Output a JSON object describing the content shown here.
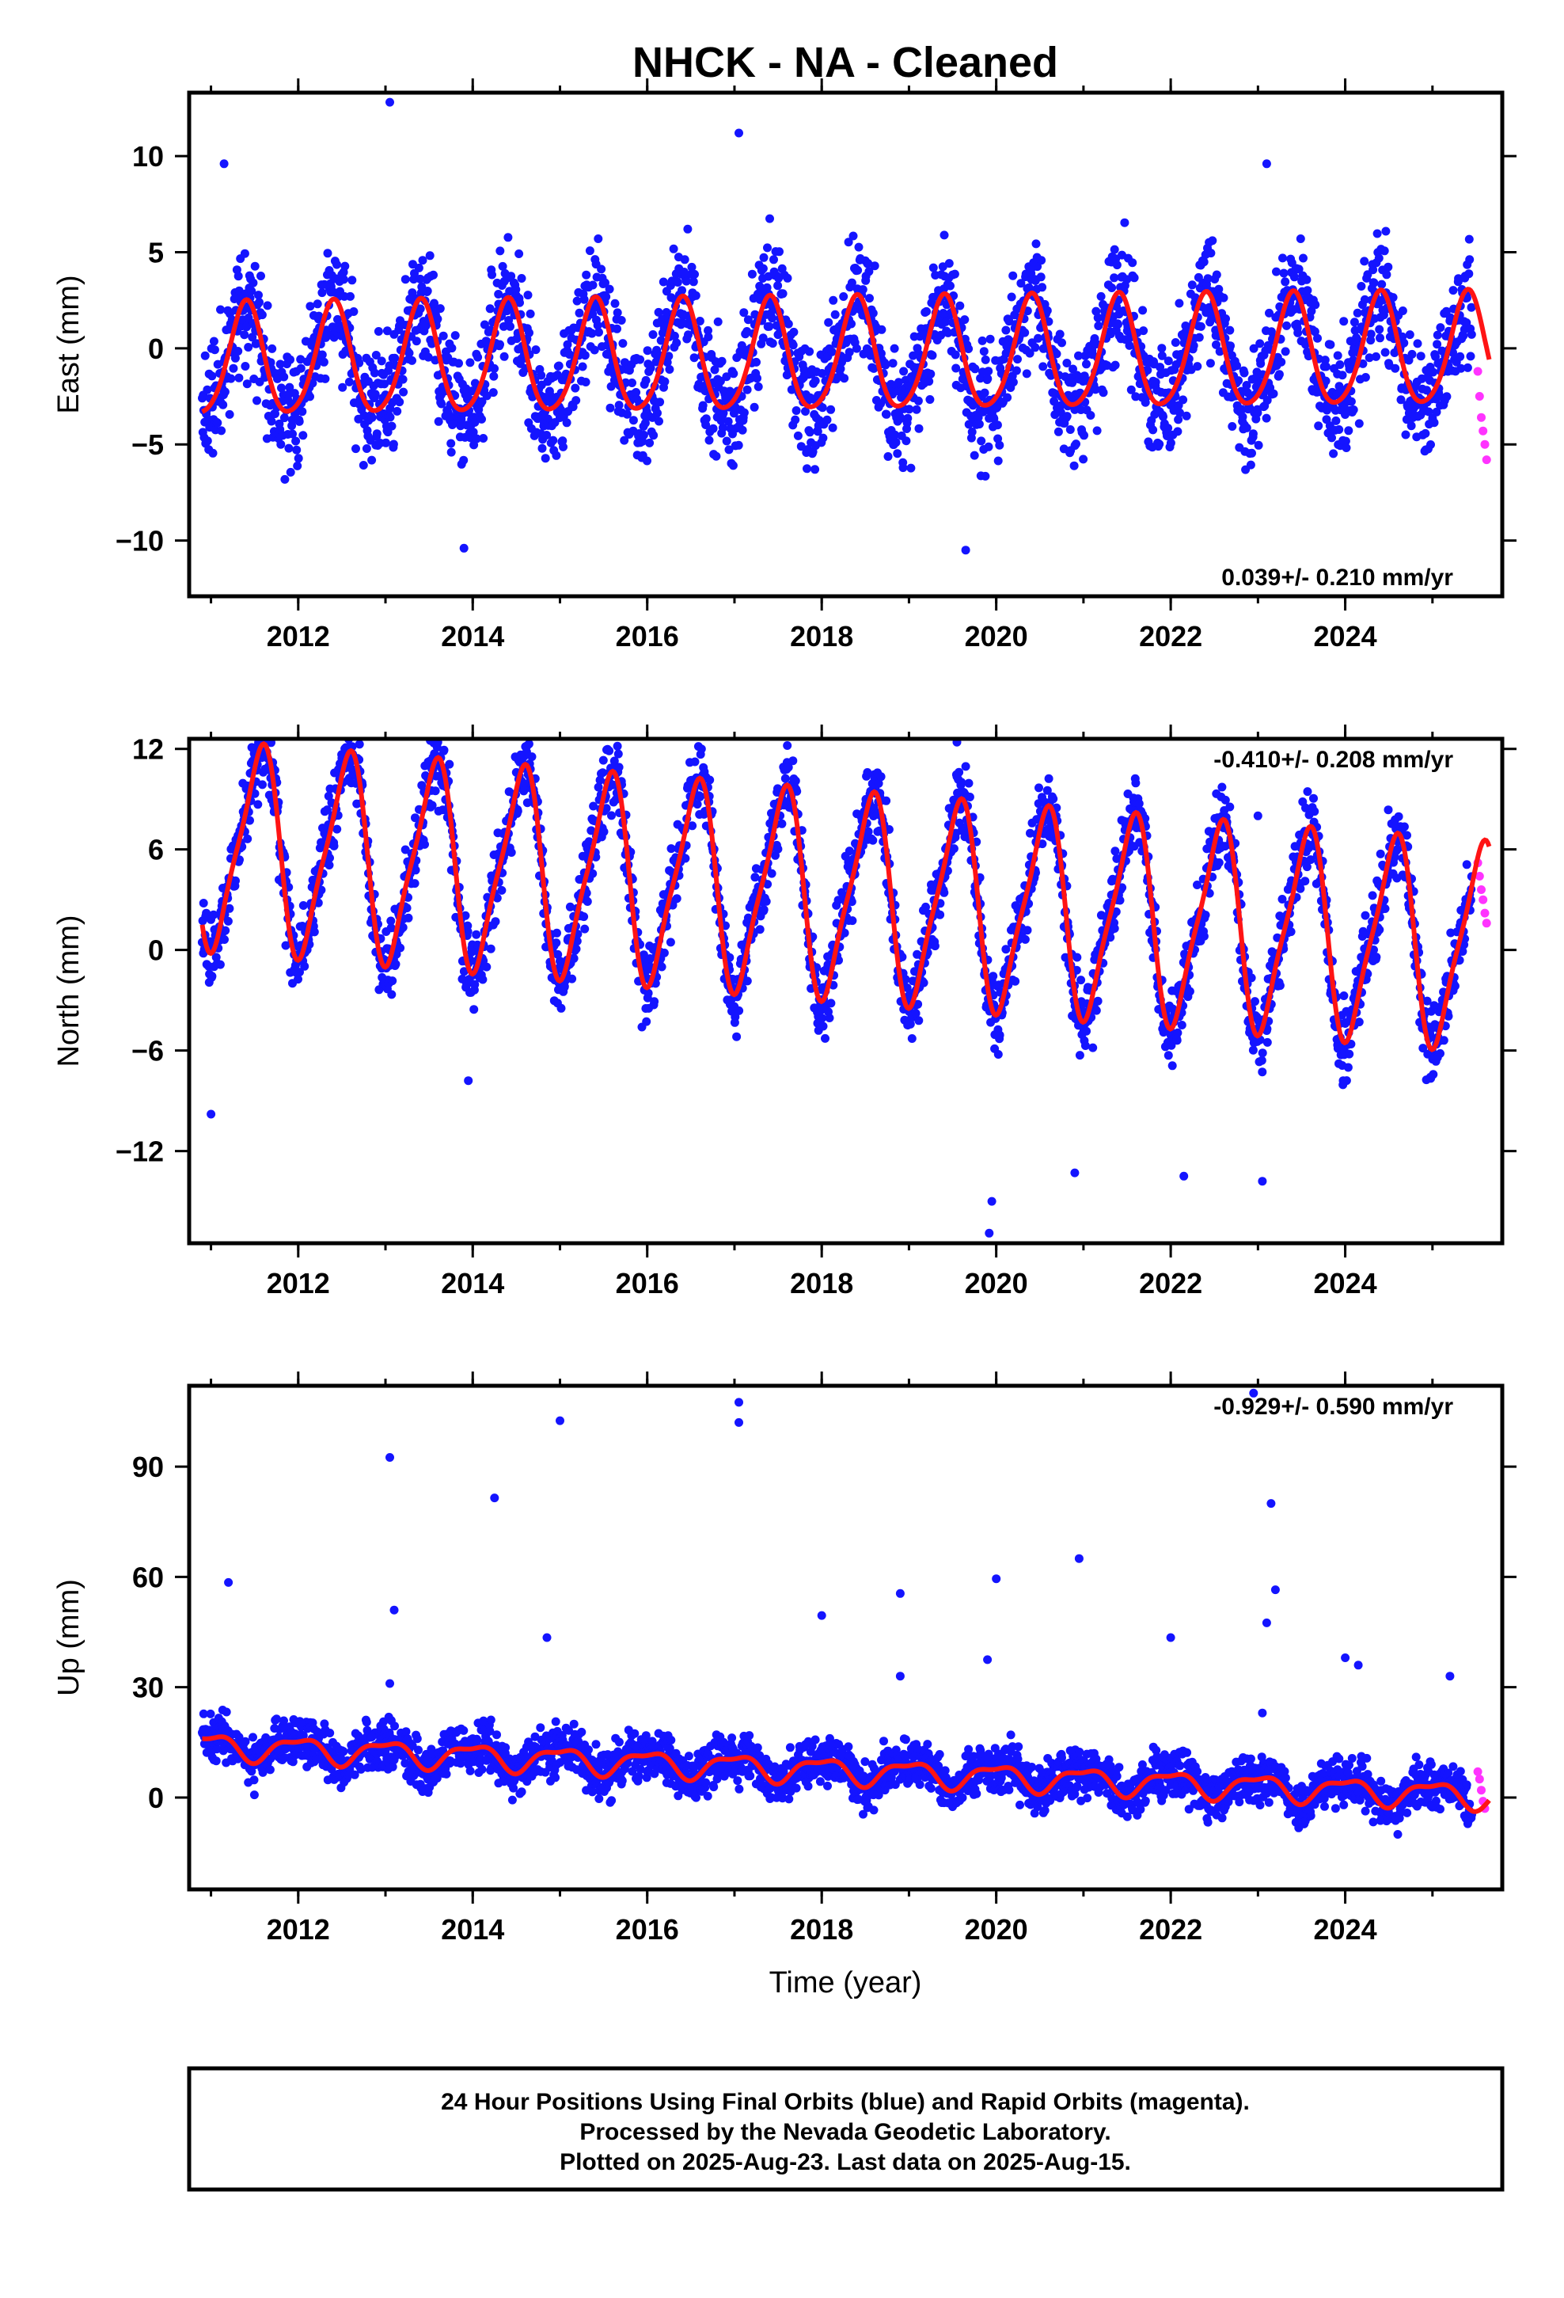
{
  "title": "NHCK  - NA - Cleaned",
  "colors": {
    "final": "#1414ff",
    "rapid": "#ff33ff",
    "model": "#ff1414",
    "axes": "#000000"
  },
  "chart_data": [
    {
      "type": "scatter",
      "ylabel": "East (mm)",
      "rate": "0.039+/- 0.210 mm/yr",
      "rate_position": "bottom-right",
      "xlim": [
        2010.75,
        2025.8
      ],
      "ylim": [
        -12.9,
        13.3
      ],
      "xticks": [
        2012,
        2014,
        2016,
        2018,
        2020,
        2022,
        2024
      ],
      "xtick_labels": [
        "2012",
        "2014",
        "2016",
        "2018",
        "2020",
        "2022",
        "2024"
      ],
      "yticks": [
        -10,
        -5,
        0,
        5,
        10
      ],
      "ytick_labels": [
        "−10",
        "−5",
        "0",
        "5",
        "10"
      ],
      "model": {
        "start": 2010.9,
        "end": 2025.65,
        "offset": -0.5,
        "trend": 0.039,
        "annual_amp": 2.9,
        "annual_phase": 0.15,
        "semi_amp": 0.4,
        "semi_phase": 0.3,
        "amp_growth": 0.0
      },
      "scatter": {
        "start": 2010.9,
        "end": 2025.45,
        "noise": 2.2,
        "count": 2600,
        "seed": 11
      },
      "rapid": {
        "x": [
          2025.52,
          2025.54,
          2025.56,
          2025.58,
          2025.6,
          2025.62
        ],
        "y": [
          -1.2,
          -2.5,
          -3.6,
          -4.3,
          -5.0,
          -5.8
        ]
      },
      "outliers": {
        "x": [
          2011.15,
          2013.05,
          2013.9,
          2017.05,
          2019.65,
          2023.1
        ],
        "y": [
          9.6,
          12.8,
          -10.4,
          11.2,
          -10.5,
          9.6
        ]
      }
    },
    {
      "type": "scatter",
      "ylabel": "North (mm)",
      "rate": "-0.410+/- 0.208 mm/yr",
      "rate_position": "top-right",
      "xlim": [
        2010.75,
        2025.8
      ],
      "ylim": [
        -17.5,
        12.6
      ],
      "xticks": [
        2012,
        2014,
        2016,
        2018,
        2020,
        2022,
        2024
      ],
      "xtick_labels": [
        "2012",
        "2014",
        "2016",
        "2018",
        "2020",
        "2022",
        "2024"
      ],
      "yticks": [
        -12,
        -6,
        0,
        6,
        12
      ],
      "ytick_labels": [
        "−12",
        "−6",
        "0",
        "6",
        "12"
      ],
      "model": {
        "start": 2010.9,
        "end": 2025.65,
        "offset": 3.3,
        "trend": -0.41,
        "annual_amp": 5.9,
        "annual_phase": 0.3,
        "semi_amp": 1.3,
        "semi_phase": 0.05,
        "amp_growth": 0.0
      },
      "scatter": {
        "start": 2010.9,
        "end": 2025.45,
        "noise": 1.6,
        "count": 2600,
        "seed": 23
      },
      "rapid": {
        "x": [
          2025.52,
          2025.54,
          2025.56,
          2025.58,
          2025.6,
          2025.62
        ],
        "y": [
          5.2,
          4.4,
          3.6,
          3.0,
          2.2,
          1.6
        ]
      },
      "outliers": {
        "x": [
          2011.0,
          2013.95,
          2019.55,
          2019.95,
          2019.92,
          2020.9,
          2022.15,
          2023.05,
          2023.0
        ],
        "y": [
          -9.8,
          -7.8,
          12.4,
          -15.0,
          -16.9,
          -13.3,
          -13.5,
          -13.8,
          8.0
        ]
      }
    },
    {
      "type": "scatter",
      "ylabel": "Up (mm)",
      "xlabel": "Time (year)",
      "rate": "-0.929+/- 0.590 mm/yr",
      "rate_position": "top-right",
      "xlim": [
        2010.75,
        2025.8
      ],
      "ylim": [
        -25,
        112
      ],
      "xticks": [
        2012,
        2014,
        2016,
        2018,
        2020,
        2022,
        2024
      ],
      "xtick_labels": [
        "2012",
        "2014",
        "2016",
        "2018",
        "2020",
        "2022",
        "2024"
      ],
      "yticks": [
        0,
        30,
        60,
        90
      ],
      "ytick_labels": [
        "0",
        "30",
        "60",
        "90"
      ],
      "model": {
        "start": 2010.9,
        "end": 2025.65,
        "offset": 7.5,
        "trend": -0.929,
        "annual_amp": 3.2,
        "annual_phase": 0.75,
        "semi_amp": 1.2,
        "semi_phase": 0.1,
        "amp_growth": 0.0
      },
      "scatter": {
        "start": 2010.9,
        "end": 2025.45,
        "noise": 4.6,
        "count": 2600,
        "seed": 37
      },
      "rapid": {
        "x": [
          2025.52,
          2025.54,
          2025.56,
          2025.58,
          2025.6
        ],
        "y": [
          7.0,
          5.0,
          2.0,
          -1.0,
          -3.0
        ]
      },
      "outliers": {
        "x": [
          2011.2,
          2013.05,
          2013.1,
          2013.05,
          2014.25,
          2014.85,
          2015.0,
          2017.05,
          2017.05,
          2018.0,
          2018.9,
          2018.9,
          2019.9,
          2020.0,
          2020.95,
          2022.0,
          2022.95,
          2023.1,
          2023.15,
          2023.2,
          2023.05,
          2024.0,
          2024.15,
          2025.2
        ],
        "y": [
          58.5,
          92.5,
          51.0,
          31.0,
          81.5,
          43.5,
          102.5,
          107.5,
          102.0,
          49.5,
          55.5,
          33.0,
          37.5,
          59.5,
          65.0,
          43.5,
          110.0,
          47.5,
          80.0,
          56.5,
          23.0,
          38.0,
          36.0,
          33.0
        ]
      }
    }
  ],
  "caption": [
    "24 Hour Positions Using Final Orbits (blue) and Rapid Orbits (magenta).",
    "Processed by the Nevada Geodetic Laboratory.",
    "Plotted on 2025-Aug-23. Last data on 2025-Aug-15."
  ]
}
